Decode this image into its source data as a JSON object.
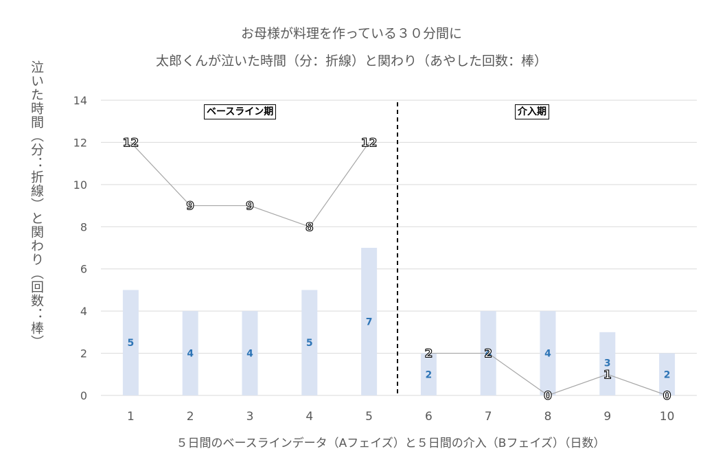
{
  "chart_data": {
    "type": "bar+line",
    "title_lines": [
      "お母様が料理を作っている３０分間に",
      "太郎くんが泣いた時間（分：折線）と関わり（あやした回数：棒）"
    ],
    "ylabel": "泣いた時間（分：折線）と関わり（回数：棒）",
    "xlabel": "５日間のベースラインデータ（Aフェイズ）と５日間の介入（Bフェイズ）（日数）",
    "categories": [
      "1",
      "2",
      "3",
      "4",
      "5",
      "6",
      "7",
      "8",
      "9",
      "10"
    ],
    "series": [
      {
        "kind": "bar",
        "values": [
          5,
          4,
          4,
          5,
          7,
          2,
          4,
          4,
          3,
          2
        ]
      },
      {
        "kind": "line",
        "values": [
          12,
          9,
          9,
          8,
          12,
          2,
          2,
          0,
          1,
          0
        ]
      }
    ],
    "yticks": [
      "0",
      "2",
      "4",
      "6",
      "8",
      "10",
      "12",
      "14"
    ],
    "ylim": [
      0,
      14
    ],
    "grid": true,
    "phase_labels": {
      "baseline": "ベースライン期",
      "intervention": "介入期"
    },
    "phase_divider_after": 5,
    "colors": {
      "bar": "#dae3f3",
      "bar_label": "#2e75b6",
      "line": "#a6a6a6",
      "line_label": "#000000",
      "grid": "#d9d9d9"
    }
  }
}
